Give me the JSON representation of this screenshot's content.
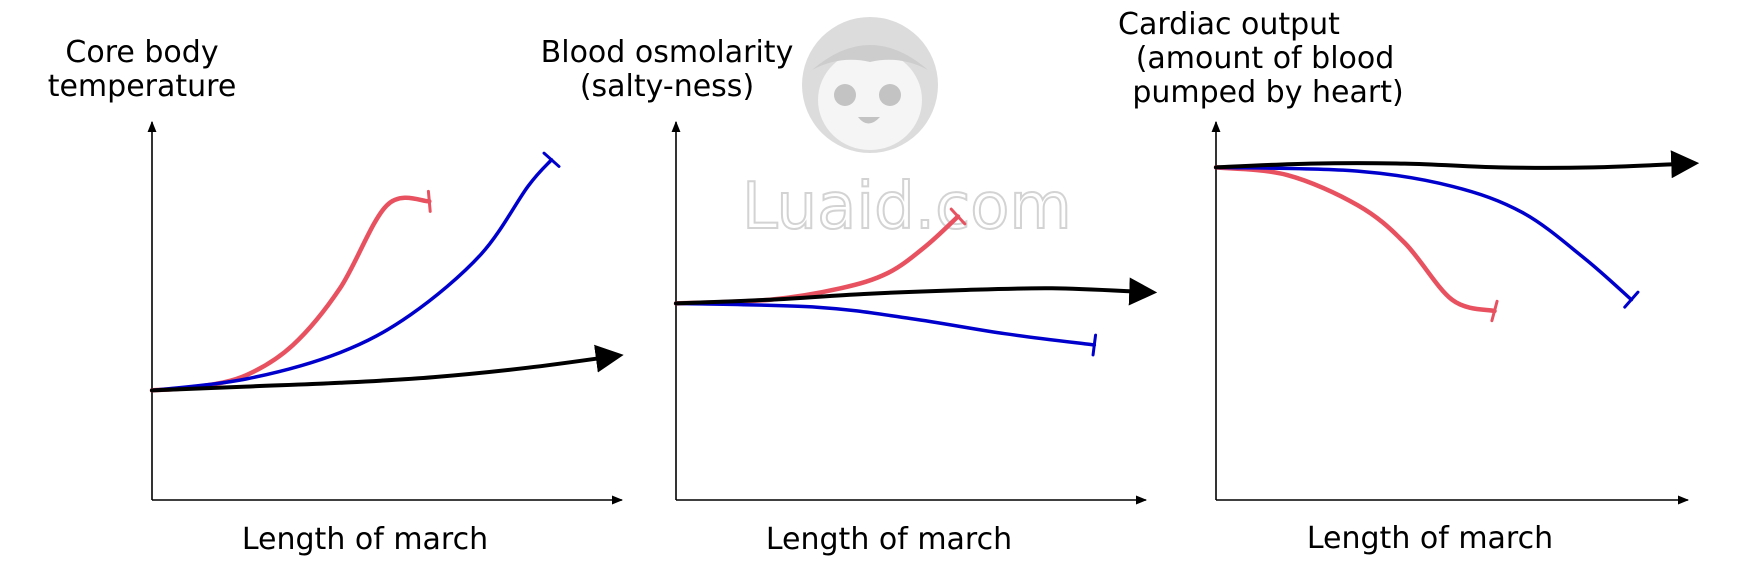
{
  "watermark": {
    "text": "Luaid.com"
  },
  "colors": {
    "axis": "#000000",
    "black_series": "#000000",
    "blue_series": "#0000cc",
    "red_series": "#e8515f"
  },
  "chart_data": [
    {
      "type": "line",
      "ylabel_lines": [
        "Core body",
        "temperature"
      ],
      "xlabel": "Length of march",
      "xlim": [
        0,
        10
      ],
      "ylim": [
        0,
        10
      ],
      "grid": false,
      "series": [
        {
          "color": "#e8515f",
          "end": "bar",
          "x": [
            0,
            1,
            2,
            3,
            4,
            5,
            5.9
          ],
          "y": [
            2.9,
            3.0,
            3.3,
            4.1,
            5.6,
            7.8,
            7.9
          ]
        },
        {
          "color": "#0000cc",
          "end": "bar",
          "x": [
            0,
            2,
            4,
            5.5,
            7,
            8,
            8.5
          ],
          "y": [
            2.9,
            3.2,
            3.9,
            4.9,
            6.5,
            8.3,
            9.0
          ]
        },
        {
          "color": "#000000",
          "end": "arrow",
          "x": [
            0,
            2,
            4,
            6,
            8,
            9.8
          ],
          "y": [
            2.9,
            3.0,
            3.1,
            3.25,
            3.5,
            3.8
          ]
        }
      ]
    },
    {
      "type": "line",
      "ylabel_lines": [
        "Blood osmolarity",
        "(salty-ness)"
      ],
      "xlabel": "Length of march",
      "xlim": [
        0,
        10
      ],
      "ylim": [
        0,
        10
      ],
      "grid": false,
      "series": [
        {
          "color": "#e8515f",
          "end": "bar",
          "x": [
            0,
            2,
            3.5,
            4.5,
            5.3,
            6.0
          ],
          "y": [
            5.2,
            5.3,
            5.6,
            6.0,
            6.7,
            7.5
          ]
        },
        {
          "color": "#0000cc",
          "end": "bar",
          "x": [
            0,
            3,
            5,
            7,
            8.9
          ],
          "y": [
            5.2,
            5.1,
            4.8,
            4.4,
            4.1
          ]
        },
        {
          "color": "#000000",
          "end": "arrow",
          "x": [
            0,
            2,
            4,
            6,
            8,
            10
          ],
          "y": [
            5.2,
            5.3,
            5.45,
            5.55,
            5.6,
            5.5
          ]
        }
      ]
    },
    {
      "type": "line",
      "ylabel_lines": [
        "Cardiac output",
        "(amount of blood",
        "pumped by heart)"
      ],
      "xlabel": "Length of march",
      "xlim": [
        0,
        10
      ],
      "ylim": [
        0,
        10
      ],
      "grid": false,
      "series": [
        {
          "color": "#e8515f",
          "end": "bar",
          "x": [
            0,
            1.5,
            3,
            4,
            5,
            5.9
          ],
          "y": [
            8.8,
            8.6,
            7.8,
            6.8,
            5.3,
            5.0
          ]
        },
        {
          "color": "#0000cc",
          "end": "bar",
          "x": [
            0,
            3,
            5,
            6.5,
            7.8,
            8.8
          ],
          "y": [
            8.8,
            8.7,
            8.3,
            7.6,
            6.4,
            5.3
          ]
        },
        {
          "color": "#000000",
          "end": "arrow",
          "x": [
            0,
            2,
            4,
            6,
            8,
            10
          ],
          "y": [
            8.8,
            8.9,
            8.9,
            8.8,
            8.8,
            8.9
          ]
        }
      ]
    }
  ]
}
